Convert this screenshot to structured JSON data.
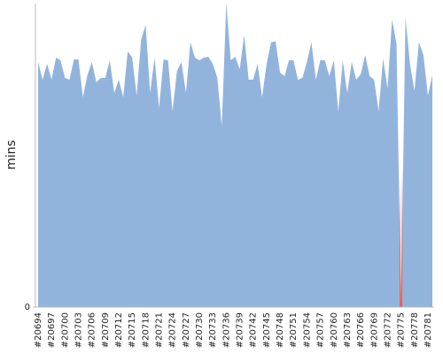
{
  "chart_data": {
    "type": "area",
    "y_label": "mins",
    "categories": [
      "#20694",
      null,
      null,
      "#20697",
      null,
      null,
      "#20700",
      null,
      null,
      "#20703",
      null,
      null,
      "#20706",
      null,
      null,
      "#20709",
      null,
      null,
      "#20712",
      null,
      null,
      "#20715",
      null,
      null,
      "#20718",
      null,
      null,
      "#20721",
      null,
      null,
      "#20724",
      null,
      null,
      "#20727",
      null,
      null,
      "#20730",
      null,
      null,
      "#20733",
      null,
      null,
      "#20736",
      null,
      null,
      "#20739",
      null,
      null,
      "#20742",
      null,
      null,
      "#20745",
      null,
      null,
      "#20748",
      null,
      null,
      "#20751",
      null,
      null,
      "#20754",
      null,
      null,
      "#20757",
      null,
      null,
      "#20760",
      null,
      null,
      "#20763",
      null,
      null,
      "#20766",
      null,
      null,
      "#20769",
      null,
      null,
      "#20772",
      null,
      null,
      "#20775",
      null,
      null,
      "#20778",
      null,
      null,
      "#20781",
      null
    ],
    "values": [
      55.7,
      51.7,
      55.3,
      51.7,
      56.7,
      56.1,
      52.1,
      51.7,
      56.3,
      56.3,
      47.7,
      52.7,
      55.7,
      51.1,
      52.1,
      52.1,
      56.1,
      48.7,
      51.7,
      47.7,
      58.1,
      56.7,
      48.1,
      60.8,
      64.2,
      48.7,
      56.7,
      45.3,
      56.3,
      56.1,
      44.5,
      53.7,
      55.7,
      48.7,
      60.2,
      56.7,
      56.1,
      56.7,
      56.9,
      55.3,
      52.1,
      41.2,
      69.0,
      56.1,
      56.9,
      54.1,
      61.8,
      51.7,
      51.7,
      55.3,
      47.7,
      55.3,
      60.2,
      60.4,
      53.3,
      52.5,
      56.1,
      56.1,
      51.7,
      52.1,
      55.7,
      60.2,
      51.7,
      56.1,
      56.1,
      52.5,
      56.1,
      44.5,
      56.1,
      48.7,
      55.7,
      51.7,
      52.9,
      57.3,
      52.5,
      51.7,
      44.5,
      56.5,
      49.7,
      65.4,
      59.8,
      0.5,
      65.8,
      55.3,
      49.1,
      60.2,
      57.3,
      48.1,
      52.7
    ],
    "color": "#92b4dc",
    "highlight_points": [
      81
    ],
    "highlight_color": "#e8605a",
    "ylim": [
      0,
      69
    ],
    "yticks": [
      0
    ]
  }
}
